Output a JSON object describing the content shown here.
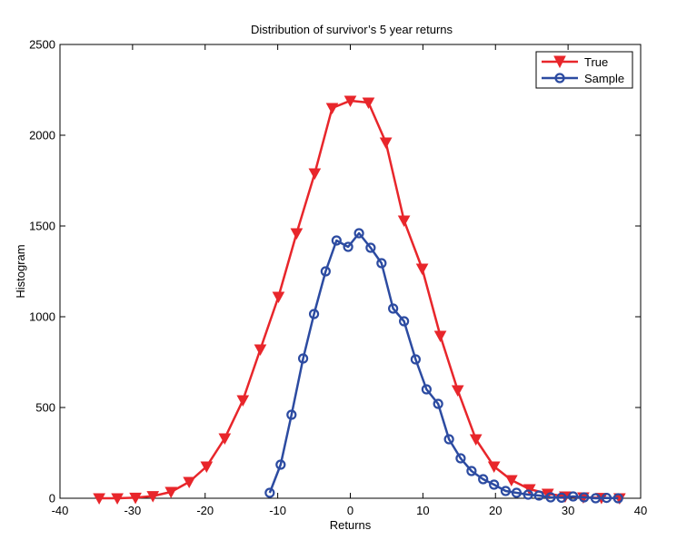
{
  "chart_data": {
    "type": "line",
    "title": "Distribution of survivor’s 5 year returns",
    "xlabel": "Returns",
    "ylabel": "Histogram",
    "xlim": [
      -40,
      40
    ],
    "ylim": [
      0,
      2500
    ],
    "xticks": [
      -40,
      -30,
      -20,
      -10,
      0,
      10,
      20,
      30,
      40
    ],
    "yticks": [
      0,
      500,
      1000,
      1500,
      2000,
      2500
    ],
    "grid": false,
    "legend_position": "top-right",
    "series": [
      {
        "name": "True",
        "color": "#e8262b",
        "marker": "triangle-down",
        "x": [
          -34.6,
          -32.1,
          -29.6,
          -27.2,
          -24.7,
          -22.2,
          -19.8,
          -17.3,
          -14.8,
          -12.4,
          -9.9,
          -7.4,
          -4.9,
          -2.5,
          0,
          2.5,
          4.9,
          7.4,
          9.9,
          12.4,
          14.8,
          17.3,
          19.8,
          22.2,
          24.7,
          27.2,
          29.6,
          32.1,
          34.6,
          37.1
        ],
        "y": [
          0,
          0,
          3,
          12,
          35,
          90,
          175,
          330,
          540,
          820,
          1110,
          1460,
          1790,
          2150,
          2190,
          2180,
          1960,
          1530,
          1265,
          895,
          595,
          325,
          175,
          100,
          50,
          25,
          10,
          5,
          2,
          0
        ]
      },
      {
        "name": "Sample",
        "color": "#2c4ba1",
        "marker": "circle",
        "x": [
          -11.1,
          -9.6,
          -8.1,
          -6.5,
          -5.0,
          -3.4,
          -1.9,
          -0.3,
          1.2,
          2.8,
          4.3,
          5.9,
          7.4,
          9.0,
          10.5,
          12.1,
          13.6,
          15.2,
          16.7,
          18.3,
          19.8,
          21.4,
          22.9,
          24.5,
          26.0,
          27.6,
          29.1,
          30.7,
          32.2,
          33.8,
          35.3,
          36.9
        ],
        "y": [
          30,
          185,
          460,
          770,
          1015,
          1250,
          1420,
          1385,
          1460,
          1380,
          1295,
          1045,
          975,
          765,
          600,
          520,
          325,
          220,
          150,
          105,
          75,
          40,
          30,
          20,
          15,
          5,
          3,
          10,
          5,
          0,
          2,
          0
        ]
      }
    ]
  }
}
